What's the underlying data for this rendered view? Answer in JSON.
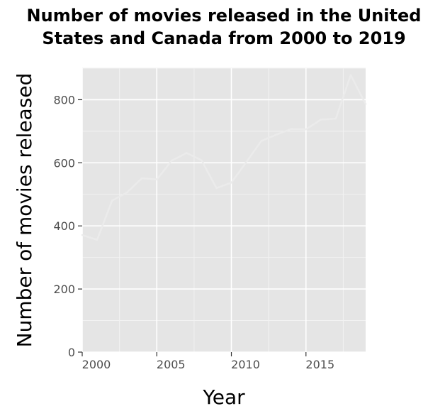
{
  "chart_data": {
    "type": "line",
    "title_lines": [
      "Number of movies released in the United",
      "States and Canada from 2000 to 2019"
    ],
    "xlabel": "Year",
    "ylabel": "Number of movies released",
    "x": [
      2000,
      2001,
      2002,
      2003,
      2004,
      2005,
      2006,
      2007,
      2008,
      2009,
      2010,
      2011,
      2012,
      2013,
      2014,
      2015,
      2016,
      2017,
      2018,
      2019
    ],
    "series": [
      {
        "values": [
          371,
          356,
          480,
          506,
          551,
          547,
          607,
          631,
          608,
          520,
          537,
          602,
          669,
          689,
          707,
          706,
          737,
          740,
          878,
          786
        ]
      }
    ],
    "xlim": [
      2000,
      2019
    ],
    "ylim": [
      0,
      900
    ],
    "xticks": [
      2000,
      2005,
      2010,
      2015
    ],
    "yticks": [
      0,
      200,
      400,
      600,
      800
    ],
    "grid": true,
    "colors": {
      "panel": "#e5e5e5",
      "grid_major": "#ffffff",
      "line": "#ebebeb"
    }
  }
}
